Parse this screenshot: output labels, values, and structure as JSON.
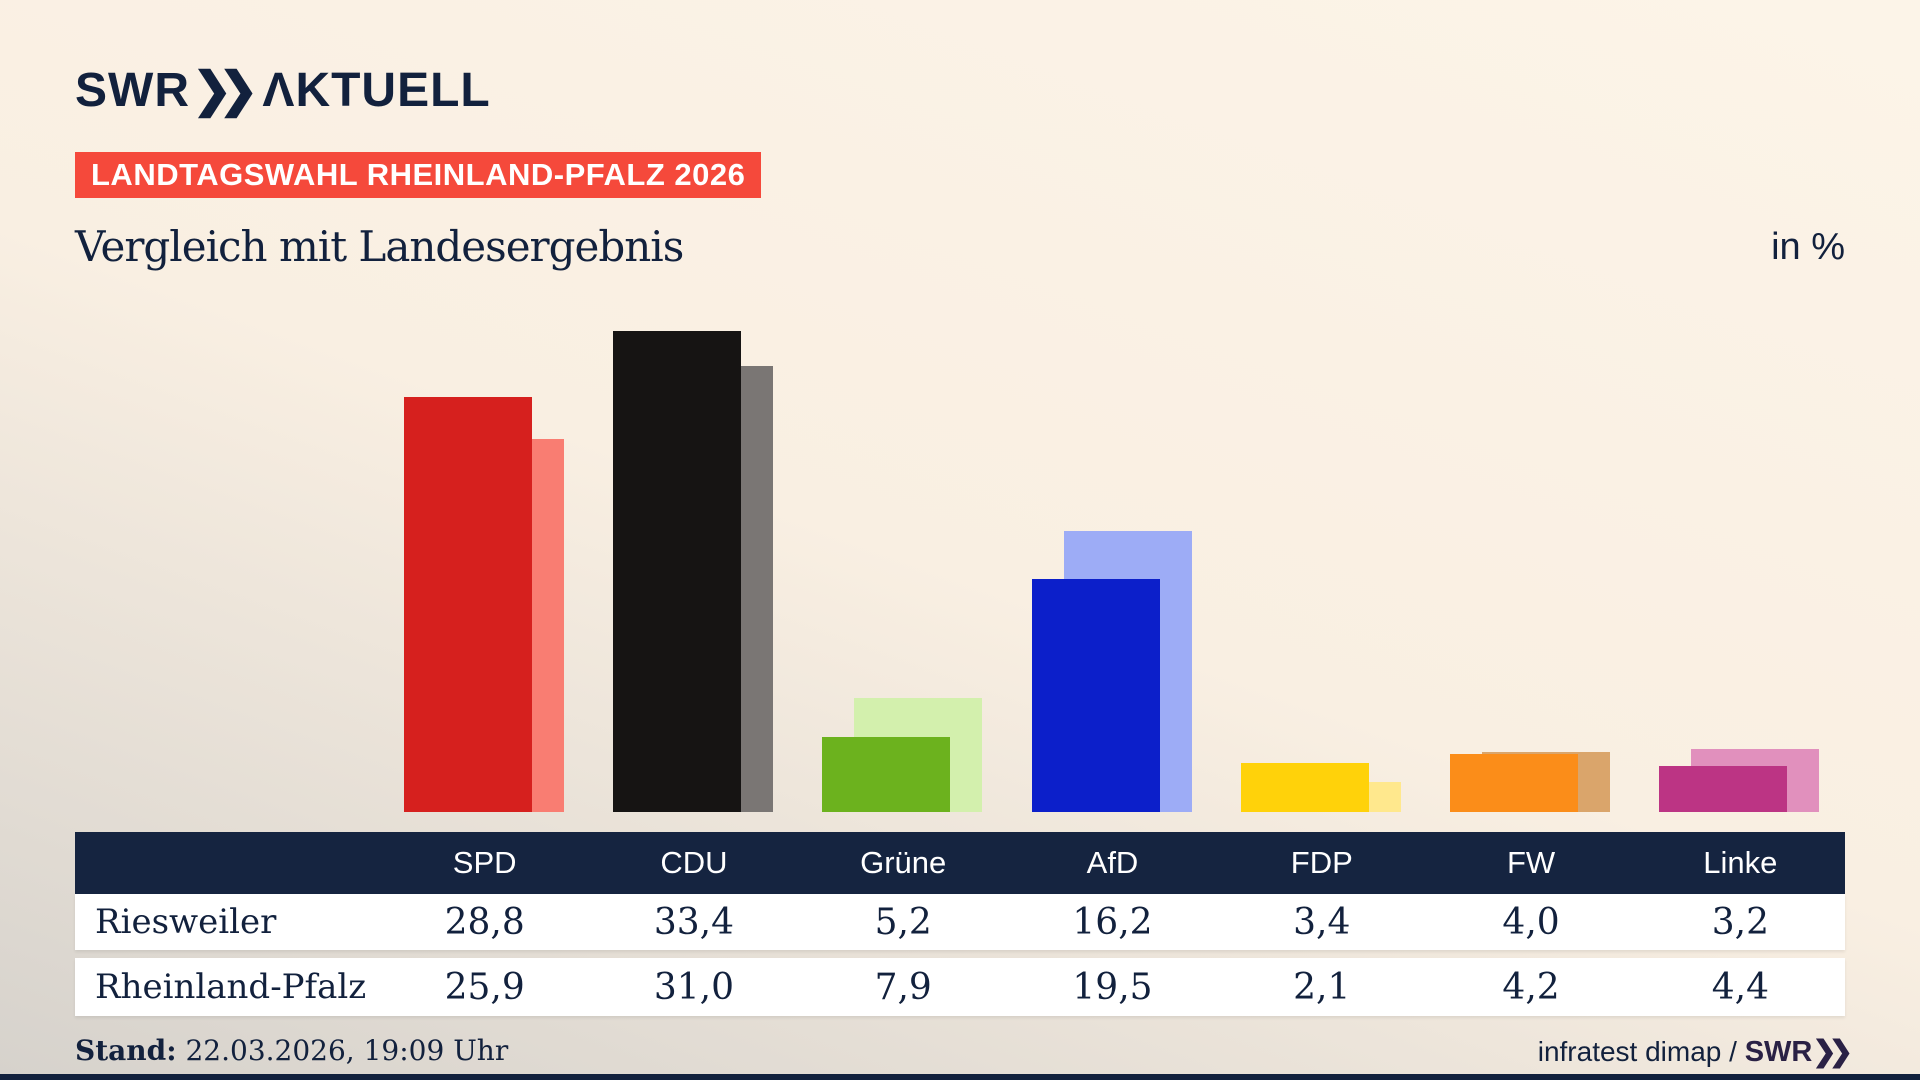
{
  "brand": {
    "logo_swr": "SWR",
    "logo_chevrons": "❯❯",
    "logo_product": "ΛKTUELL"
  },
  "badge": {
    "label": "LANDTAGSWAHL RHEINLAND-PFALZ 2026",
    "bg_color": "#f5493b"
  },
  "title": "Vergleich mit Landesergebnis",
  "unit_label": "in %",
  "chart_data": {
    "type": "bar",
    "categories": [
      "SPD",
      "CDU",
      "Grüne",
      "AfD",
      "FDP",
      "FW",
      "Linke"
    ],
    "series": [
      {
        "name": "Riesweiler",
        "role": "foreground",
        "values": [
          28.8,
          33.4,
          5.2,
          16.2,
          3.4,
          4.0,
          3.2
        ]
      },
      {
        "name": "Rheinland-Pfalz",
        "role": "background",
        "values": [
          25.9,
          31.0,
          7.9,
          19.5,
          2.1,
          4.2,
          4.4
        ]
      }
    ],
    "colors_foreground": [
      "#d6201e",
      "#161413",
      "#6cb21e",
      "#0c1fca",
      "#ffd20a",
      "#fb8d19",
      "#bc3484"
    ],
    "colors_background": [
      "#f97d72",
      "#7a7674",
      "#d3f0ad",
      "#9dacf6",
      "#ffe88d",
      "#daa56b",
      "#e190bd"
    ],
    "title": "Vergleich mit Landesergebnis",
    "xlabel": "",
    "ylabel": "in %",
    "ylim": [
      0,
      35
    ],
    "grid": false,
    "legend_position": "table-rows"
  },
  "table": {
    "header": [
      "SPD",
      "CDU",
      "Grüne",
      "AfD",
      "FDP",
      "FW",
      "Linke"
    ],
    "rows": [
      {
        "label": "Riesweiler",
        "values": [
          "28,8",
          "33,4",
          "5,2",
          "16,2",
          "3,4",
          "4,0",
          "3,2"
        ]
      },
      {
        "label": "Rheinland-Pfalz",
        "values": [
          "25,9",
          "31,0",
          "7,9",
          "19,5",
          "2,1",
          "4,2",
          "4,4"
        ]
      }
    ],
    "header_bg": "#152440",
    "row_bg": "#ffffff"
  },
  "footer": {
    "stand_label": "Stand:",
    "stand_value": " 22.03.2026, 19:09 Uhr",
    "source_text": "infratest dimap / ",
    "source_brand": "SWR",
    "source_brand_chevrons": "❯❯"
  }
}
